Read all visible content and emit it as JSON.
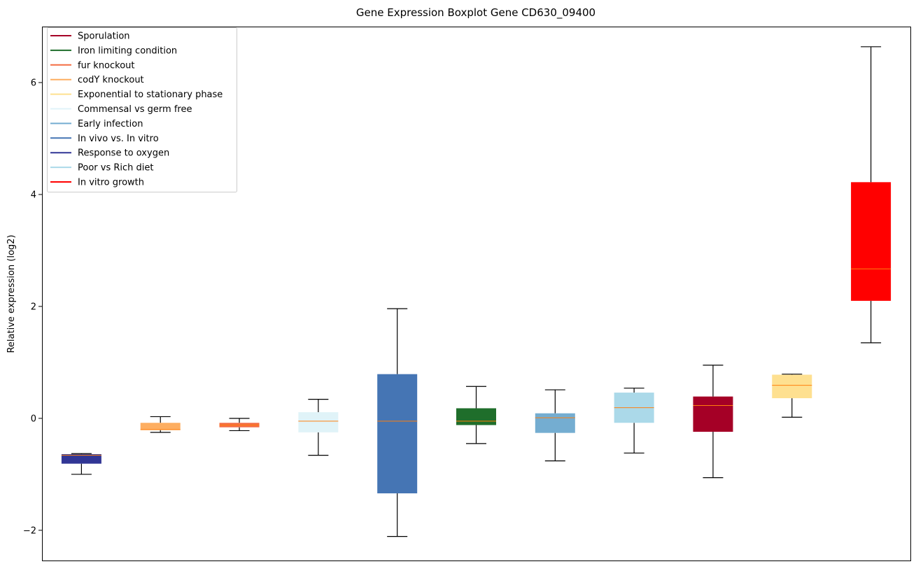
{
  "chart_data": {
    "type": "boxplot",
    "title": "Gene Expression Boxplot Gene CD630_09400",
    "xlabel": "",
    "ylabel": "Relative expression (log2)",
    "ylim": [
      -2.54,
      7.0
    ],
    "yticks": [
      -2,
      0,
      2,
      4,
      6
    ],
    "ytick_labels": [
      "−2",
      "0",
      "2",
      "4",
      "6"
    ],
    "grid": false,
    "legend_position": "top-left",
    "legend": [
      {
        "label": "Sporulation",
        "color": "#a50026"
      },
      {
        "label": "Iron limiting condition",
        "color": "#1f6e2b"
      },
      {
        "label": "fur knockout",
        "color": "#f46d43"
      },
      {
        "label": "codY knockout",
        "color": "#fdae61"
      },
      {
        "label": "Exponential to stationary phase",
        "color": "#fee090"
      },
      {
        "label": "Commensal vs germ free",
        "color": "#e0f3f8"
      },
      {
        "label": "Early infection",
        "color": "#74add1"
      },
      {
        "label": "In vivo vs. In vitro",
        "color": "#4575b4"
      },
      {
        "label": "Response to oxygen",
        "color": "#313695"
      },
      {
        "label": "Poor vs Rich diet",
        "color": "#abd9e9"
      },
      {
        "label": "In vitro growth",
        "color": "#ff0000"
      }
    ],
    "median_color": "#ff7f0e",
    "series": [
      {
        "name": "Response to oxygen",
        "color": "#313695",
        "whislo": -1.0,
        "q1": -0.81,
        "med": -0.66,
        "q3": -0.64,
        "whishi": -0.63
      },
      {
        "name": "codY knockout",
        "color": "#fdae61",
        "whislo": -0.25,
        "q1": -0.21,
        "med": -0.2,
        "q3": -0.08,
        "whishi": 0.03
      },
      {
        "name": "fur knockout",
        "color": "#f46d43",
        "whislo": -0.22,
        "q1": -0.16,
        "med": -0.12,
        "q3": -0.08,
        "whishi": 0.0
      },
      {
        "name": "Commensal vs germ free",
        "color": "#e0f3f8",
        "whislo": -0.66,
        "q1": -0.25,
        "med": -0.05,
        "q3": 0.11,
        "whishi": 0.34
      },
      {
        "name": "In vivo vs. In vitro",
        "color": "#4575b4",
        "whislo": -2.11,
        "q1": -1.34,
        "med": -0.05,
        "q3": 0.79,
        "whishi": 1.96
      },
      {
        "name": "Iron limiting condition",
        "color": "#1f6e2b",
        "whislo": -0.45,
        "q1": -0.12,
        "med": -0.05,
        "q3": 0.18,
        "whishi": 0.57
      },
      {
        "name": "Early infection",
        "color": "#74add1",
        "whislo": -0.76,
        "q1": -0.26,
        "med": 0.01,
        "q3": 0.09,
        "whishi": 0.51
      },
      {
        "name": "Poor vs Rich diet",
        "color": "#abd9e9",
        "whislo": -0.62,
        "q1": -0.08,
        "med": 0.19,
        "q3": 0.46,
        "whishi": 0.54
      },
      {
        "name": "Sporulation",
        "color": "#a50026",
        "whislo": -1.06,
        "q1": -0.24,
        "med": 0.23,
        "q3": 0.39,
        "whishi": 0.95
      },
      {
        "name": "Exponential to stationary phase",
        "color": "#fee090",
        "whislo": 0.02,
        "q1": 0.36,
        "med": 0.59,
        "q3": 0.78,
        "whishi": 0.79
      },
      {
        "name": "In vitro growth",
        "color": "#ff0000",
        "whislo": 1.35,
        "q1": 2.1,
        "med": 2.67,
        "q3": 4.22,
        "whishi": 6.64
      }
    ]
  }
}
